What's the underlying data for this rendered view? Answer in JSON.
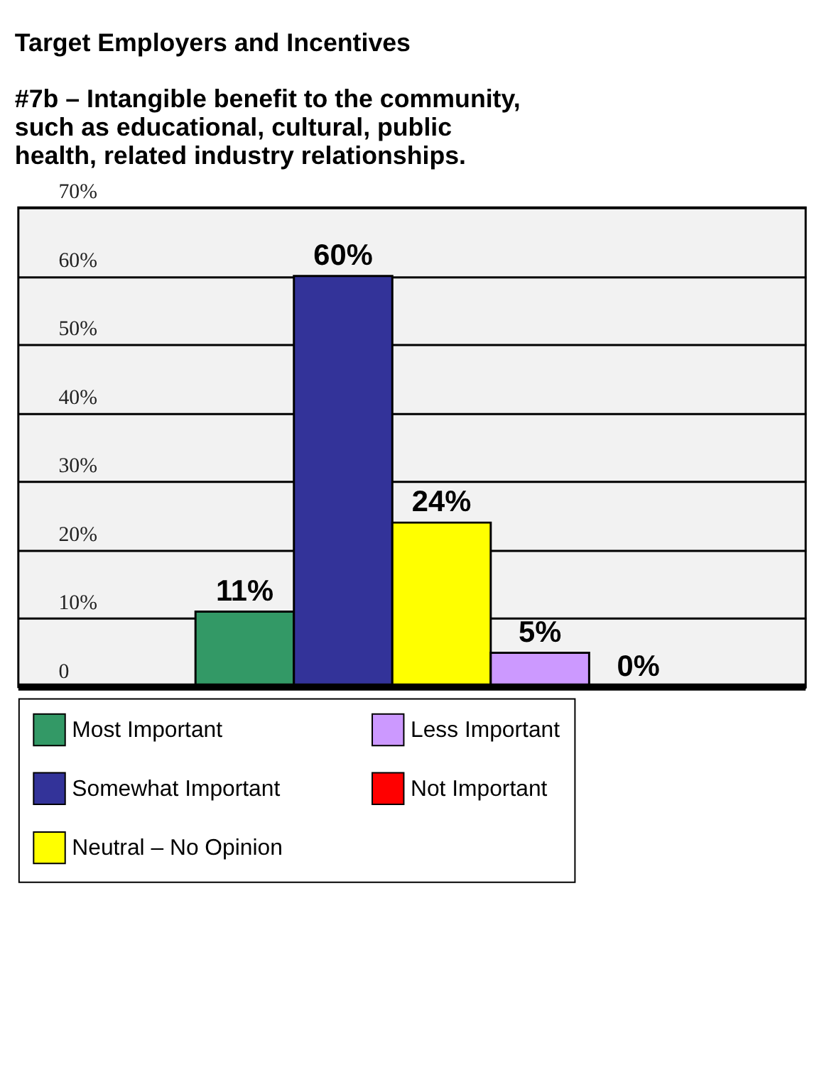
{
  "chart_data": {
    "type": "bar",
    "title": "Target Employers and Incentives",
    "subtitle": "#7b – Intangible benefit to the community, such as educational, cultural, public health, related industry relationships.",
    "categories": [
      null
    ],
    "series": [
      {
        "name": "Most Important",
        "color": "#339966",
        "values": [
          11
        ]
      },
      {
        "name": "Somewhat Important",
        "color": "#333399",
        "values": [
          60
        ]
      },
      {
        "name": "Neutral – No Opinion",
        "color": "#ffff00",
        "values": [
          24
        ]
      },
      {
        "name": "Less Important",
        "color": "#cc99ff",
        "values": [
          5
        ]
      },
      {
        "name": "Not Important",
        "color": "#ff0000",
        "values": [
          0
        ]
      }
    ],
    "ylim": [
      0,
      70
    ],
    "yticks": [
      0,
      {
        "value": 10,
        "label": "10%"
      },
      {
        "value": 20,
        "label": "20%"
      },
      {
        "value": 30,
        "label": "30%"
      },
      {
        "value": 40,
        "label": "40%"
      },
      {
        "value": 50,
        "label": "50%"
      },
      {
        "value": 60,
        "label": "60%"
      },
      {
        "value": 70,
        "label": "70%"
      }
    ],
    "value_labels": [
      "11%",
      "60%",
      "24%",
      "5%",
      "0%"
    ],
    "grid": "y",
    "legend": "bottom",
    "tick_labels": "y"
  }
}
